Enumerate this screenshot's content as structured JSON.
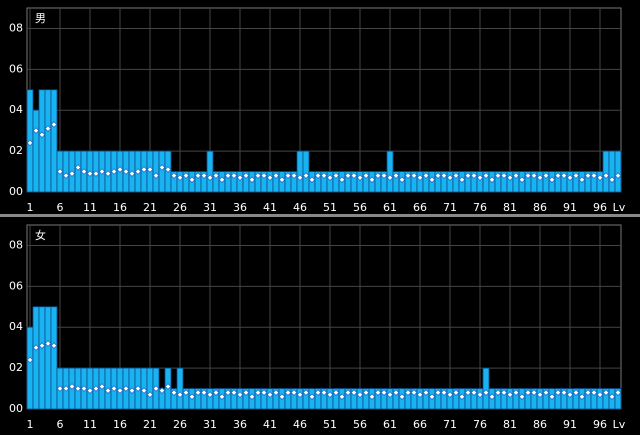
{
  "chart_data": [
    {
      "type": "bar",
      "title": "男",
      "x_label": "Lv",
      "xlim": [
        0.5,
        99.5
      ],
      "xticks": [
        1,
        6,
        11,
        16,
        21,
        26,
        31,
        36,
        41,
        46,
        51,
        56,
        61,
        66,
        71,
        76,
        81,
        86,
        91,
        96
      ],
      "ylim": [
        0,
        9
      ],
      "yticks": [
        {
          "value": 0,
          "label": "00"
        },
        {
          "value": 2,
          "label": "02"
        },
        {
          "value": 4,
          "label": "04"
        },
        {
          "value": 6,
          "label": "06"
        },
        {
          "value": 8,
          "label": "08"
        }
      ],
      "grid": true,
      "series": [
        {
          "color": "#19b3f2",
          "values": [
            5,
            4,
            5,
            5,
            5,
            2,
            2,
            2,
            2,
            2,
            2,
            2,
            2,
            2,
            2,
            2,
            2,
            2,
            2,
            2,
            2,
            2,
            2,
            2,
            1,
            1,
            1,
            1,
            1,
            1,
            2,
            1,
            1,
            1,
            1,
            1,
            1,
            1,
            1,
            1,
            1,
            1,
            1,
            1,
            1,
            2,
            2,
            1,
            1,
            1,
            1,
            1,
            1,
            1,
            1,
            1,
            1,
            1,
            1,
            1,
            2,
            1,
            1,
            1,
            1,
            1,
            1,
            1,
            1,
            1,
            1,
            1,
            1,
            1,
            1,
            1,
            1,
            1,
            1,
            1,
            1,
            1,
            1,
            1,
            1,
            1,
            1,
            1,
            1,
            1,
            1,
            1,
            1,
            1,
            1,
            1,
            2,
            2,
            2
          ]
        },
        {
          "color": "#ffffff",
          "marker": "diamond",
          "values": [
            2.4,
            3.0,
            2.8,
            3.1,
            3.3,
            1.0,
            0.8,
            0.9,
            1.2,
            1.0,
            0.9,
            0.9,
            1.0,
            0.9,
            1.0,
            1.1,
            1.0,
            0.9,
            1.0,
            1.1,
            1.1,
            0.8,
            1.2,
            1.1,
            0.8,
            0.7,
            0.8,
            0.6,
            0.8,
            0.8,
            0.7,
            0.8,
            0.6,
            0.8,
            0.8,
            0.7,
            0.8,
            0.6,
            0.8,
            0.8,
            0.7,
            0.8,
            0.6,
            0.8,
            0.8,
            0.7,
            0.8,
            0.6,
            0.8,
            0.8,
            0.7,
            0.8,
            0.6,
            0.8,
            0.8,
            0.7,
            0.8,
            0.6,
            0.8,
            0.8,
            0.7,
            0.8,
            0.6,
            0.8,
            0.8,
            0.7,
            0.8,
            0.6,
            0.8,
            0.8,
            0.7,
            0.8,
            0.6,
            0.8,
            0.8,
            0.7,
            0.8,
            0.6,
            0.8,
            0.8,
            0.7,
            0.8,
            0.6,
            0.8,
            0.8,
            0.7,
            0.8,
            0.6,
            0.8,
            0.8,
            0.7,
            0.8,
            0.6,
            0.8,
            0.8,
            0.7,
            0.8,
            0.6,
            0.8
          ]
        }
      ]
    },
    {
      "type": "bar",
      "title": "女",
      "x_label": "Lv",
      "xlim": [
        0.5,
        99.5
      ],
      "xticks": [
        1,
        6,
        11,
        16,
        21,
        26,
        31,
        36,
        41,
        46,
        51,
        56,
        61,
        66,
        71,
        76,
        81,
        86,
        91,
        96
      ],
      "ylim": [
        0,
        9
      ],
      "yticks": [
        {
          "value": 0,
          "label": "00"
        },
        {
          "value": 2,
          "label": "02"
        },
        {
          "value": 4,
          "label": "04"
        },
        {
          "value": 6,
          "label": "06"
        },
        {
          "value": 8,
          "label": "08"
        }
      ],
      "grid": true,
      "series": [
        {
          "color": "#19b3f2",
          "values": [
            4,
            5,
            5,
            5,
            5,
            2,
            2,
            2,
            2,
            2,
            2,
            2,
            2,
            2,
            2,
            2,
            2,
            2,
            2,
            2,
            2,
            2,
            1,
            2,
            1,
            2,
            1,
            1,
            1,
            1,
            1,
            1,
            1,
            1,
            1,
            1,
            1,
            1,
            1,
            1,
            1,
            1,
            1,
            1,
            1,
            1,
            1,
            1,
            1,
            1,
            1,
            1,
            1,
            1,
            1,
            1,
            1,
            1,
            1,
            1,
            1,
            1,
            1,
            1,
            1,
            1,
            1,
            1,
            1,
            1,
            1,
            1,
            1,
            1,
            1,
            1,
            2,
            1,
            1,
            1,
            1,
            1,
            1,
            1,
            1,
            1,
            1,
            1,
            1,
            1,
            1,
            1,
            1,
            1,
            1,
            1,
            1,
            1,
            1
          ]
        },
        {
          "color": "#ffffff",
          "marker": "diamond",
          "values": [
            2.4,
            3.0,
            3.1,
            3.2,
            3.1,
            1.0,
            1.0,
            1.1,
            1.0,
            1.0,
            0.9,
            1.0,
            1.1,
            0.9,
            1.0,
            0.9,
            1.0,
            0.9,
            1.0,
            0.9,
            0.7,
            1.0,
            0.9,
            1.1,
            0.8,
            0.7,
            0.8,
            0.6,
            0.8,
            0.8,
            0.7,
            0.8,
            0.6,
            0.8,
            0.8,
            0.7,
            0.8,
            0.6,
            0.8,
            0.8,
            0.7,
            0.8,
            0.6,
            0.8,
            0.8,
            0.7,
            0.8,
            0.6,
            0.8,
            0.8,
            0.7,
            0.8,
            0.6,
            0.8,
            0.8,
            0.7,
            0.8,
            0.6,
            0.8,
            0.8,
            0.7,
            0.8,
            0.6,
            0.8,
            0.8,
            0.7,
            0.8,
            0.6,
            0.8,
            0.8,
            0.7,
            0.8,
            0.6,
            0.8,
            0.8,
            0.7,
            0.8,
            0.6,
            0.8,
            0.8,
            0.7,
            0.8,
            0.6,
            0.8,
            0.8,
            0.7,
            0.8,
            0.6,
            0.8,
            0.8,
            0.7,
            0.8,
            0.6,
            0.8,
            0.8,
            0.7,
            0.8,
            0.6,
            0.8
          ]
        }
      ]
    }
  ]
}
